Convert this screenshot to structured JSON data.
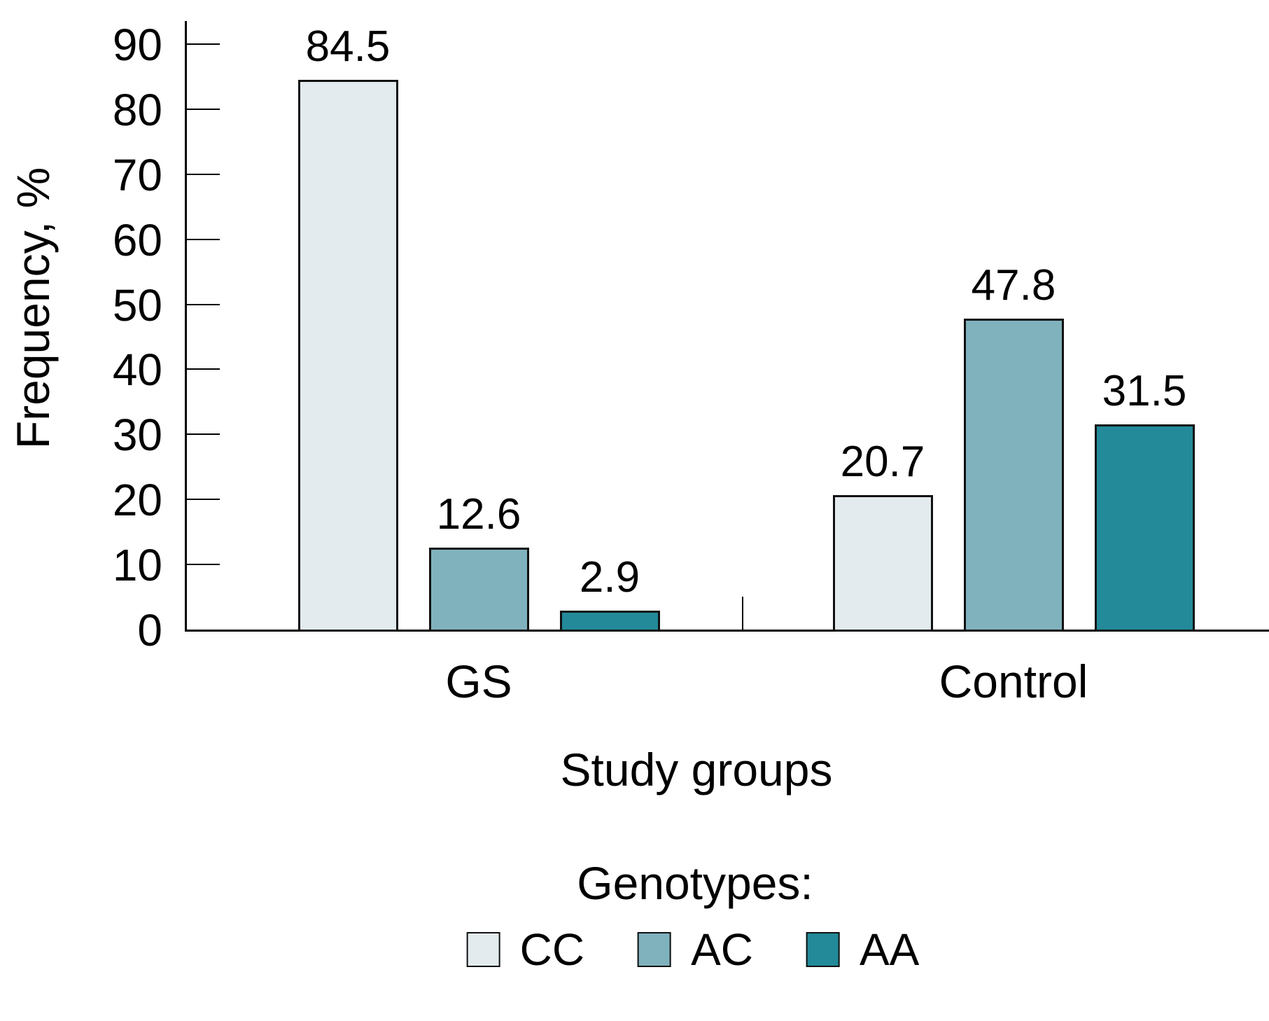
{
  "chart_data": {
    "type": "bar",
    "title": "",
    "xlabel": "Study groups",
    "ylabel": "Frequency, %",
    "ylim": [
      0,
      90
    ],
    "ytick_step": 10,
    "grid": false,
    "categories": [
      "GS",
      "Control"
    ],
    "series": [
      {
        "name": "CC",
        "color": "#e3ebee",
        "values": [
          84.5,
          20.7
        ]
      },
      {
        "name": "AC",
        "color": "#80b2be",
        "values": [
          12.6,
          47.8
        ]
      },
      {
        "name": "AA",
        "color": "#238a99",
        "values": [
          2.9,
          31.5
        ]
      }
    ],
    "bar_value_labels": [
      [
        "84.5",
        "12.6",
        "2.9"
      ],
      [
        "20.7",
        "47.8",
        "31.5"
      ]
    ],
    "legend_title": "Genotypes:",
    "legend_position": "bottom",
    "legend_items": [
      "CC",
      "AC",
      "AA"
    ],
    "bar_outline_color": "#111111",
    "axis_color": "#000000",
    "text_color": "#000000"
  }
}
